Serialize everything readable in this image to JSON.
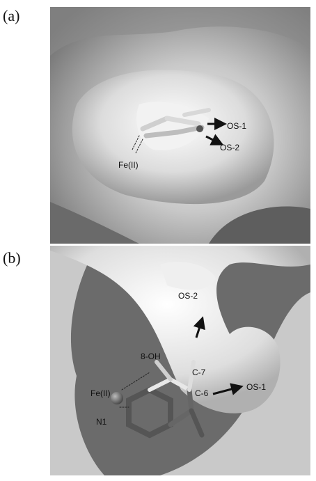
{
  "panels": [
    {
      "label": "(a)",
      "annotations": [
        "OS-1",
        "OS-2",
        "Fe(II)"
      ]
    },
    {
      "label": "(b)",
      "annotations": [
        "OS-2",
        "8-OH",
        "C-7",
        "Fe(II)",
        "OS-1",
        "C-6",
        "N1"
      ]
    }
  ]
}
